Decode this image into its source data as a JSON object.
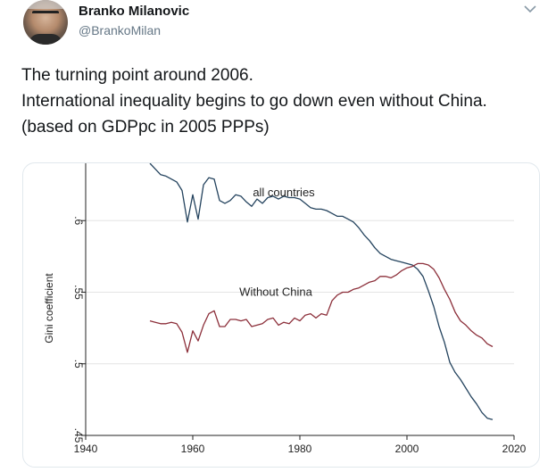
{
  "tweet": {
    "author_name": "Branko Milanovic",
    "author_handle": "@BrankoMilan",
    "lines": [
      "The turning point around 2006.",
      "International inequality begins to go down even without China.",
      "(based on GDPpc in 2005 PPPs)"
    ]
  },
  "icons": {
    "avatar": "author-avatar",
    "menu": "chevron-down-icon"
  },
  "colors": {
    "all_countries": "#24435e",
    "without_china": "#8c2f3a",
    "grid": "#e4e4e4"
  },
  "chart_data": {
    "type": "line",
    "title": "",
    "xlabel": "",
    "ylabel": "Gini coefficient",
    "xlim": [
      1940,
      2020
    ],
    "ylim": [
      0.45,
      0.64
    ],
    "xticks": [
      "1940",
      "1960",
      "1980",
      "2000",
      "2020"
    ],
    "yticks": [
      ".45",
      ".5",
      ".55",
      ".6"
    ],
    "grid": true,
    "series": [
      {
        "name": "all countries",
        "x": [
          1952,
          1953,
          1954,
          1955,
          1956,
          1957,
          1958,
          1959,
          1960,
          1961,
          1962,
          1963,
          1964,
          1965,
          1966,
          1967,
          1968,
          1969,
          1970,
          1971,
          1972,
          1973,
          1974,
          1975,
          1976,
          1977,
          1978,
          1979,
          1980,
          1981,
          1982,
          1983,
          1984,
          1985,
          1986,
          1987,
          1988,
          1989,
          1990,
          1991,
          1992,
          1993,
          1994,
          1995,
          1996,
          1997,
          1998,
          1999,
          2000,
          2001,
          2002,
          2003,
          2004,
          2005,
          2006,
          2007,
          2008,
          2009,
          2010,
          2011,
          2012,
          2013,
          2014,
          2015,
          2016
        ],
        "y": [
          0.64,
          0.636,
          0.632,
          0.631,
          0.629,
          0.627,
          0.621,
          0.599,
          0.618,
          0.601,
          0.625,
          0.63,
          0.629,
          0.614,
          0.612,
          0.614,
          0.618,
          0.617,
          0.613,
          0.61,
          0.615,
          0.612,
          0.616,
          0.617,
          0.615,
          0.617,
          0.616,
          0.616,
          0.615,
          0.612,
          0.609,
          0.608,
          0.608,
          0.607,
          0.605,
          0.603,
          0.603,
          0.601,
          0.599,
          0.595,
          0.59,
          0.586,
          0.581,
          0.577,
          0.575,
          0.573,
          0.572,
          0.571,
          0.57,
          0.569,
          0.566,
          0.561,
          0.551,
          0.54,
          0.526,
          0.515,
          0.501,
          0.494,
          0.489,
          0.483,
          0.477,
          0.472,
          0.466,
          0.462,
          0.461
        ]
      },
      {
        "name": "Without China",
        "x": [
          1952,
          1953,
          1954,
          1955,
          1956,
          1957,
          1958,
          1959,
          1960,
          1961,
          1962,
          1963,
          1964,
          1965,
          1966,
          1967,
          1968,
          1969,
          1970,
          1971,
          1972,
          1973,
          1974,
          1975,
          1976,
          1977,
          1978,
          1979,
          1980,
          1981,
          1982,
          1983,
          1984,
          1985,
          1986,
          1987,
          1988,
          1989,
          1990,
          1991,
          1992,
          1993,
          1994,
          1995,
          1996,
          1997,
          1998,
          1999,
          2000,
          2001,
          2002,
          2003,
          2004,
          2005,
          2006,
          2007,
          2008,
          2009,
          2010,
          2011,
          2012,
          2013,
          2014,
          2015,
          2016
        ],
        "y": [
          0.53,
          0.529,
          0.528,
          0.528,
          0.529,
          0.528,
          0.522,
          0.508,
          0.523,
          0.516,
          0.527,
          0.535,
          0.537,
          0.526,
          0.526,
          0.531,
          0.531,
          0.53,
          0.531,
          0.526,
          0.527,
          0.528,
          0.531,
          0.532,
          0.527,
          0.529,
          0.528,
          0.532,
          0.53,
          0.534,
          0.535,
          0.532,
          0.535,
          0.534,
          0.544,
          0.548,
          0.55,
          0.55,
          0.552,
          0.553,
          0.555,
          0.557,
          0.558,
          0.561,
          0.561,
          0.56,
          0.562,
          0.565,
          0.567,
          0.568,
          0.57,
          0.57,
          0.569,
          0.566,
          0.56,
          0.552,
          0.545,
          0.536,
          0.53,
          0.527,
          0.523,
          0.52,
          0.518,
          0.514,
          0.512
        ]
      }
    ]
  }
}
